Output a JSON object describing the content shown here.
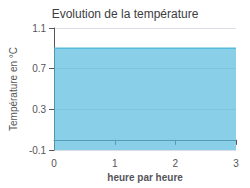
{
  "chart_data": {
    "type": "line",
    "title": "Evolution de la température",
    "x_label": "heure par heure",
    "y_label": "Température en °C",
    "x": [
      0,
      1,
      2,
      3
    ],
    "values": [
      0.9,
      0.9,
      0.9,
      0.9
    ],
    "color": "#55bbdd",
    "xlim": [
      0,
      3
    ],
    "xticks": [
      0,
      1,
      2,
      3
    ],
    "ylim": [
      -0.1,
      1.1
    ],
    "yticks": [
      -0.1,
      0.3,
      0.7,
      1.1
    ],
    "grid": true
  }
}
